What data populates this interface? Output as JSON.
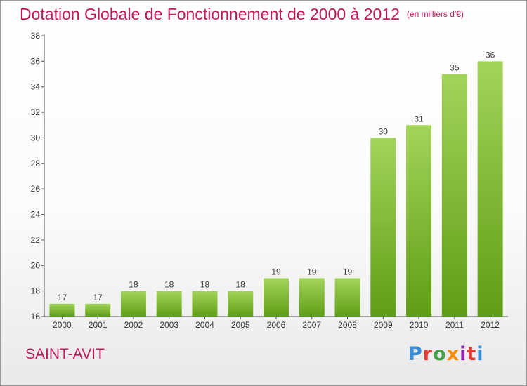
{
  "header": {
    "title": "Dotation Globale de Fonctionnement de 2000 à 2012",
    "unit_note": "(en milliers d'€)"
  },
  "commune": "SAINT-AVIT",
  "logo": {
    "text": "Proxiti",
    "letters": [
      {
        "char": "P",
        "color": "#3a8fd6"
      },
      {
        "char": "r",
        "color": "#e53935"
      },
      {
        "char": "o",
        "color": "#43a047"
      },
      {
        "char": "x",
        "color": "#fb8c00"
      },
      {
        "char": "i",
        "color": "#8e24aa"
      },
      {
        "char": "t",
        "color": "#e53935"
      },
      {
        "char": "i",
        "color": "#3a8fd6"
      }
    ]
  },
  "colors": {
    "bar_top": "#a3d45a",
    "bar_bottom": "#5f9e14",
    "title": "#c2185b"
  },
  "chart_data": {
    "type": "bar",
    "title": "Dotation Globale de Fonctionnement de 2000 à 2012",
    "subtitle": "(en milliers d'€)",
    "xlabel": "",
    "ylabel": "",
    "categories": [
      "2000",
      "2001",
      "2002",
      "2003",
      "2004",
      "2005",
      "2006",
      "2007",
      "2008",
      "2009",
      "2010",
      "2011",
      "2012"
    ],
    "values": [
      17,
      17,
      18,
      18,
      18,
      18,
      19,
      19,
      19,
      30,
      31,
      35,
      36
    ],
    "ylim": [
      16,
      38
    ],
    "yticks": [
      16,
      18,
      20,
      22,
      24,
      26,
      28,
      30,
      32,
      34,
      36,
      38
    ],
    "grid": false,
    "data_labels": true
  }
}
